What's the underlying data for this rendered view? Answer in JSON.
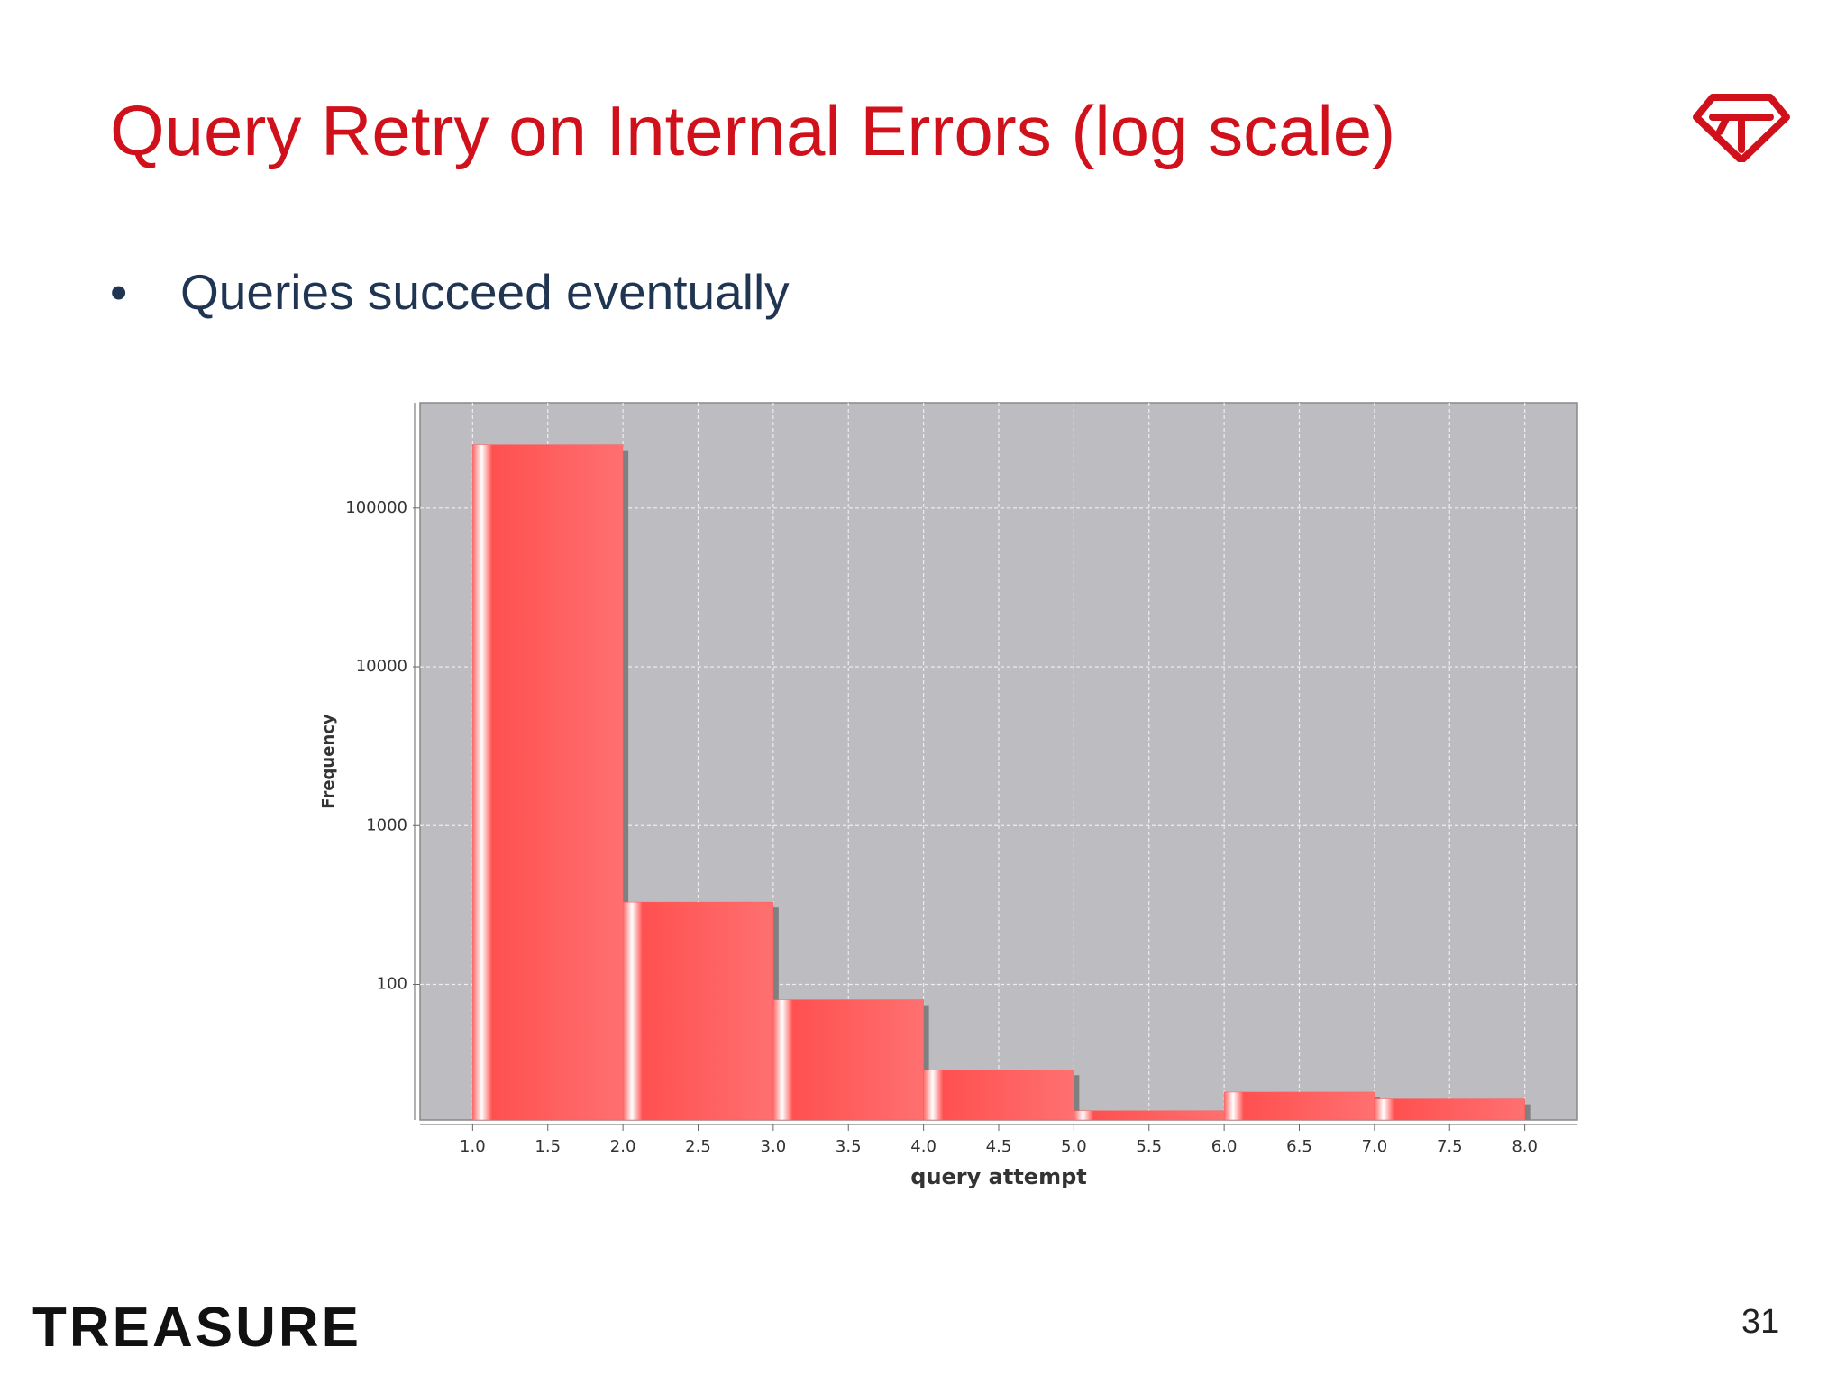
{
  "title": "Query Retry on Internal Errors (log scale)",
  "bullets": [
    "Queries succeed eventually"
  ],
  "footer": {
    "brand": "TREASURE",
    "page_number": "31"
  },
  "chart_data": {
    "type": "histogram",
    "bins": [
      1,
      2,
      3,
      4,
      5,
      6,
      7,
      8
    ],
    "values": [
      250000,
      330,
      80,
      29,
      16,
      21,
      19
    ],
    "color": "#ff5a5a",
    "x_label": "query attempt",
    "y_label": "Frequency",
    "xlim": [
      0.65,
      8.35
    ],
    "xticks": [
      {
        "value": 1,
        "label": "1.0"
      },
      {
        "value": 1.5,
        "label": "1.5"
      },
      {
        "value": 2,
        "label": "2.0"
      },
      {
        "value": 2.5,
        "label": "2.5"
      },
      {
        "value": 3,
        "label": "3.0"
      },
      {
        "value": 3.5,
        "label": "3.5"
      },
      {
        "value": 4,
        "label": "4.0"
      },
      {
        "value": 4.5,
        "label": "4.5"
      },
      {
        "value": 5,
        "label": "5.0"
      },
      {
        "value": 5.5,
        "label": "5.5"
      },
      {
        "value": 6,
        "label": "6.0"
      },
      {
        "value": 6.5,
        "label": "6.5"
      },
      {
        "value": 7,
        "label": "7.0"
      },
      {
        "value": 7.5,
        "label": "7.5"
      },
      {
        "value": 8,
        "label": "8.0"
      }
    ],
    "ylim": [
      14,
      460000
    ],
    "yticks": [
      100,
      1000,
      10000,
      100000
    ],
    "log_scale": true,
    "grid": true
  }
}
